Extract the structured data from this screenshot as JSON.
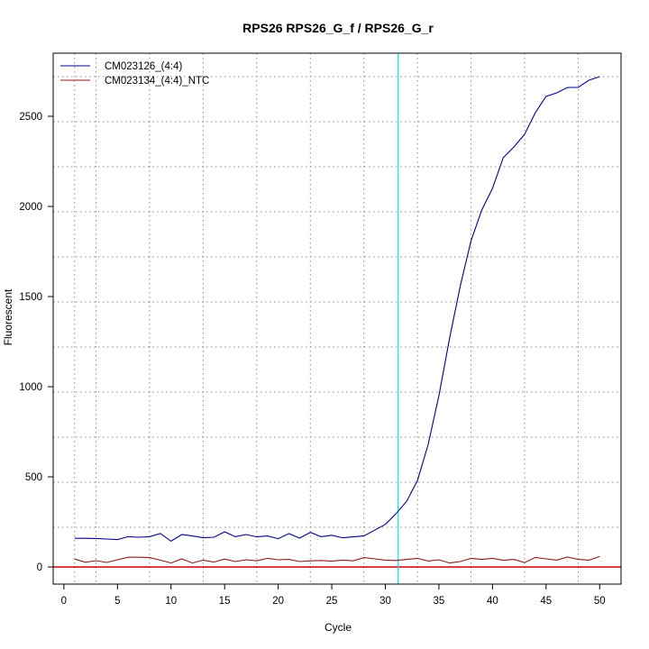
{
  "chart_data": {
    "type": "line",
    "title": "RPS26  RPS26_G_f / RPS26_G_r",
    "xlabel": "Cycle",
    "ylabel": "Fluorescent",
    "xlim": [
      -1,
      52
    ],
    "ylim": [
      -95,
      2850
    ],
    "x_ticks": [
      0,
      5,
      10,
      15,
      20,
      25,
      30,
      35,
      40,
      45,
      50
    ],
    "y_ticks": [
      0,
      500,
      1000,
      1500,
      2000,
      2500
    ],
    "x_grid": [
      1,
      3,
      8,
      13,
      18,
      23,
      28,
      33,
      38,
      43,
      48
    ],
    "y_grid": [
      220,
      470,
      720,
      970,
      1220,
      1470,
      1720,
      1970,
      2220,
      2470,
      2720
    ],
    "grid": true,
    "legend_position": "top-left",
    "threshold_cycle": 31.2,
    "threshold_color": "#00e5ee",
    "baseline_value": 0,
    "baseline_color": "#cc0000",
    "series": [
      {
        "name": "CM023126_(4:4)",
        "color": "#00008b",
        "x": [
          1,
          2,
          3,
          4,
          5,
          6,
          7,
          8,
          9,
          10,
          11,
          12,
          13,
          14,
          15,
          16,
          17,
          18,
          19,
          20,
          21,
          22,
          23,
          24,
          25,
          26,
          27,
          28,
          29,
          30,
          31,
          32,
          33,
          34,
          35,
          36,
          37,
          38,
          39,
          40,
          41,
          42,
          43,
          44,
          45,
          46,
          47,
          48,
          49,
          50
        ],
        "values": [
          159,
          159,
          158,
          155,
          152,
          168,
          165,
          168,
          186,
          143,
          180,
          172,
          162,
          165,
          195,
          168,
          180,
          167,
          172,
          157,
          185,
          160,
          192,
          168,
          176,
          162,
          167,
          172,
          204,
          236,
          296,
          365,
          480,
          680,
          950,
          1270,
          1560,
          1810,
          1980,
          2100,
          2270,
          2330,
          2400,
          2520,
          2610,
          2630,
          2660,
          2660,
          2700,
          2720
        ]
      },
      {
        "name": "CM023134_(4:4)_NTC",
        "color": "#8b1a1a",
        "x": [
          1,
          2,
          3,
          4,
          5,
          6,
          7,
          8,
          9,
          10,
          11,
          12,
          13,
          14,
          15,
          16,
          17,
          18,
          19,
          20,
          21,
          22,
          23,
          24,
          25,
          26,
          27,
          28,
          29,
          30,
          31,
          32,
          33,
          34,
          35,
          36,
          37,
          38,
          39,
          40,
          41,
          42,
          43,
          44,
          45,
          46,
          47,
          48,
          49,
          50
        ],
        "values": [
          44,
          26,
          35,
          25,
          40,
          54,
          54,
          52,
          38,
          22,
          45,
          22,
          38,
          27,
          44,
          30,
          40,
          34,
          48,
          40,
          42,
          30,
          34,
          36,
          32,
          38,
          34,
          52,
          45,
          38,
          36,
          42,
          48,
          33,
          40,
          22,
          30,
          48,
          42,
          48,
          37,
          42,
          24,
          53,
          45,
          38,
          55,
          42,
          38,
          58
        ]
      }
    ]
  }
}
